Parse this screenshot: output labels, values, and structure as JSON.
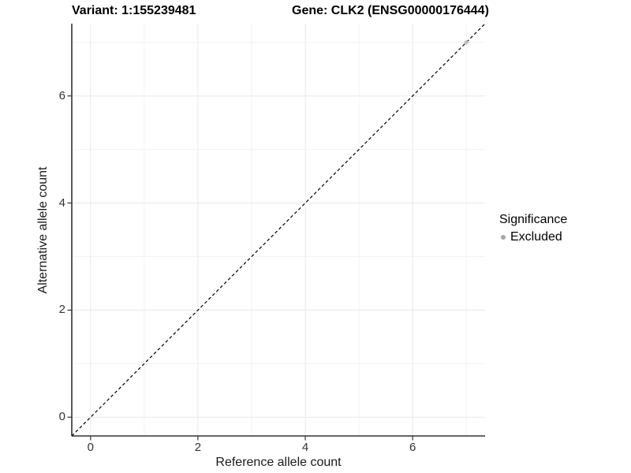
{
  "chart_data": {
    "type": "scatter",
    "title_left": "Variant: 1:155239481",
    "title_right": "Gene: CLK2 (ENSG00000176444)",
    "xlabel": "Reference allele count",
    "ylabel": "Alternative allele count",
    "xlim": [
      -0.35,
      7.35
    ],
    "ylim": [
      -0.35,
      7.35
    ],
    "x_major_ticks": [
      0,
      2,
      4,
      6
    ],
    "y_major_ticks": [
      0,
      2,
      4,
      6
    ],
    "x_minor_ticks": [
      1,
      3,
      5,
      7
    ],
    "y_minor_ticks": [
      1,
      3,
      5,
      7
    ],
    "grid": "on",
    "identity_line": {
      "slope": 1,
      "intercept": 0,
      "style": "dashed",
      "color": "#000000"
    },
    "series": [
      {
        "name": "Excluded",
        "color": "#bdbdbd",
        "points": [
          {
            "x": 7,
            "y": 7
          }
        ]
      }
    ],
    "legend": {
      "title": "Significance",
      "position": "right",
      "items": [
        {
          "label": "Excluded",
          "color": "#a6a6a6"
        }
      ]
    },
    "colors": {
      "axis_line": "#333333",
      "tick_mark": "#333333",
      "grid_major": "#e8e8e8",
      "grid_minor": "#f3f3f3",
      "panel_background": "#ffffff"
    }
  }
}
